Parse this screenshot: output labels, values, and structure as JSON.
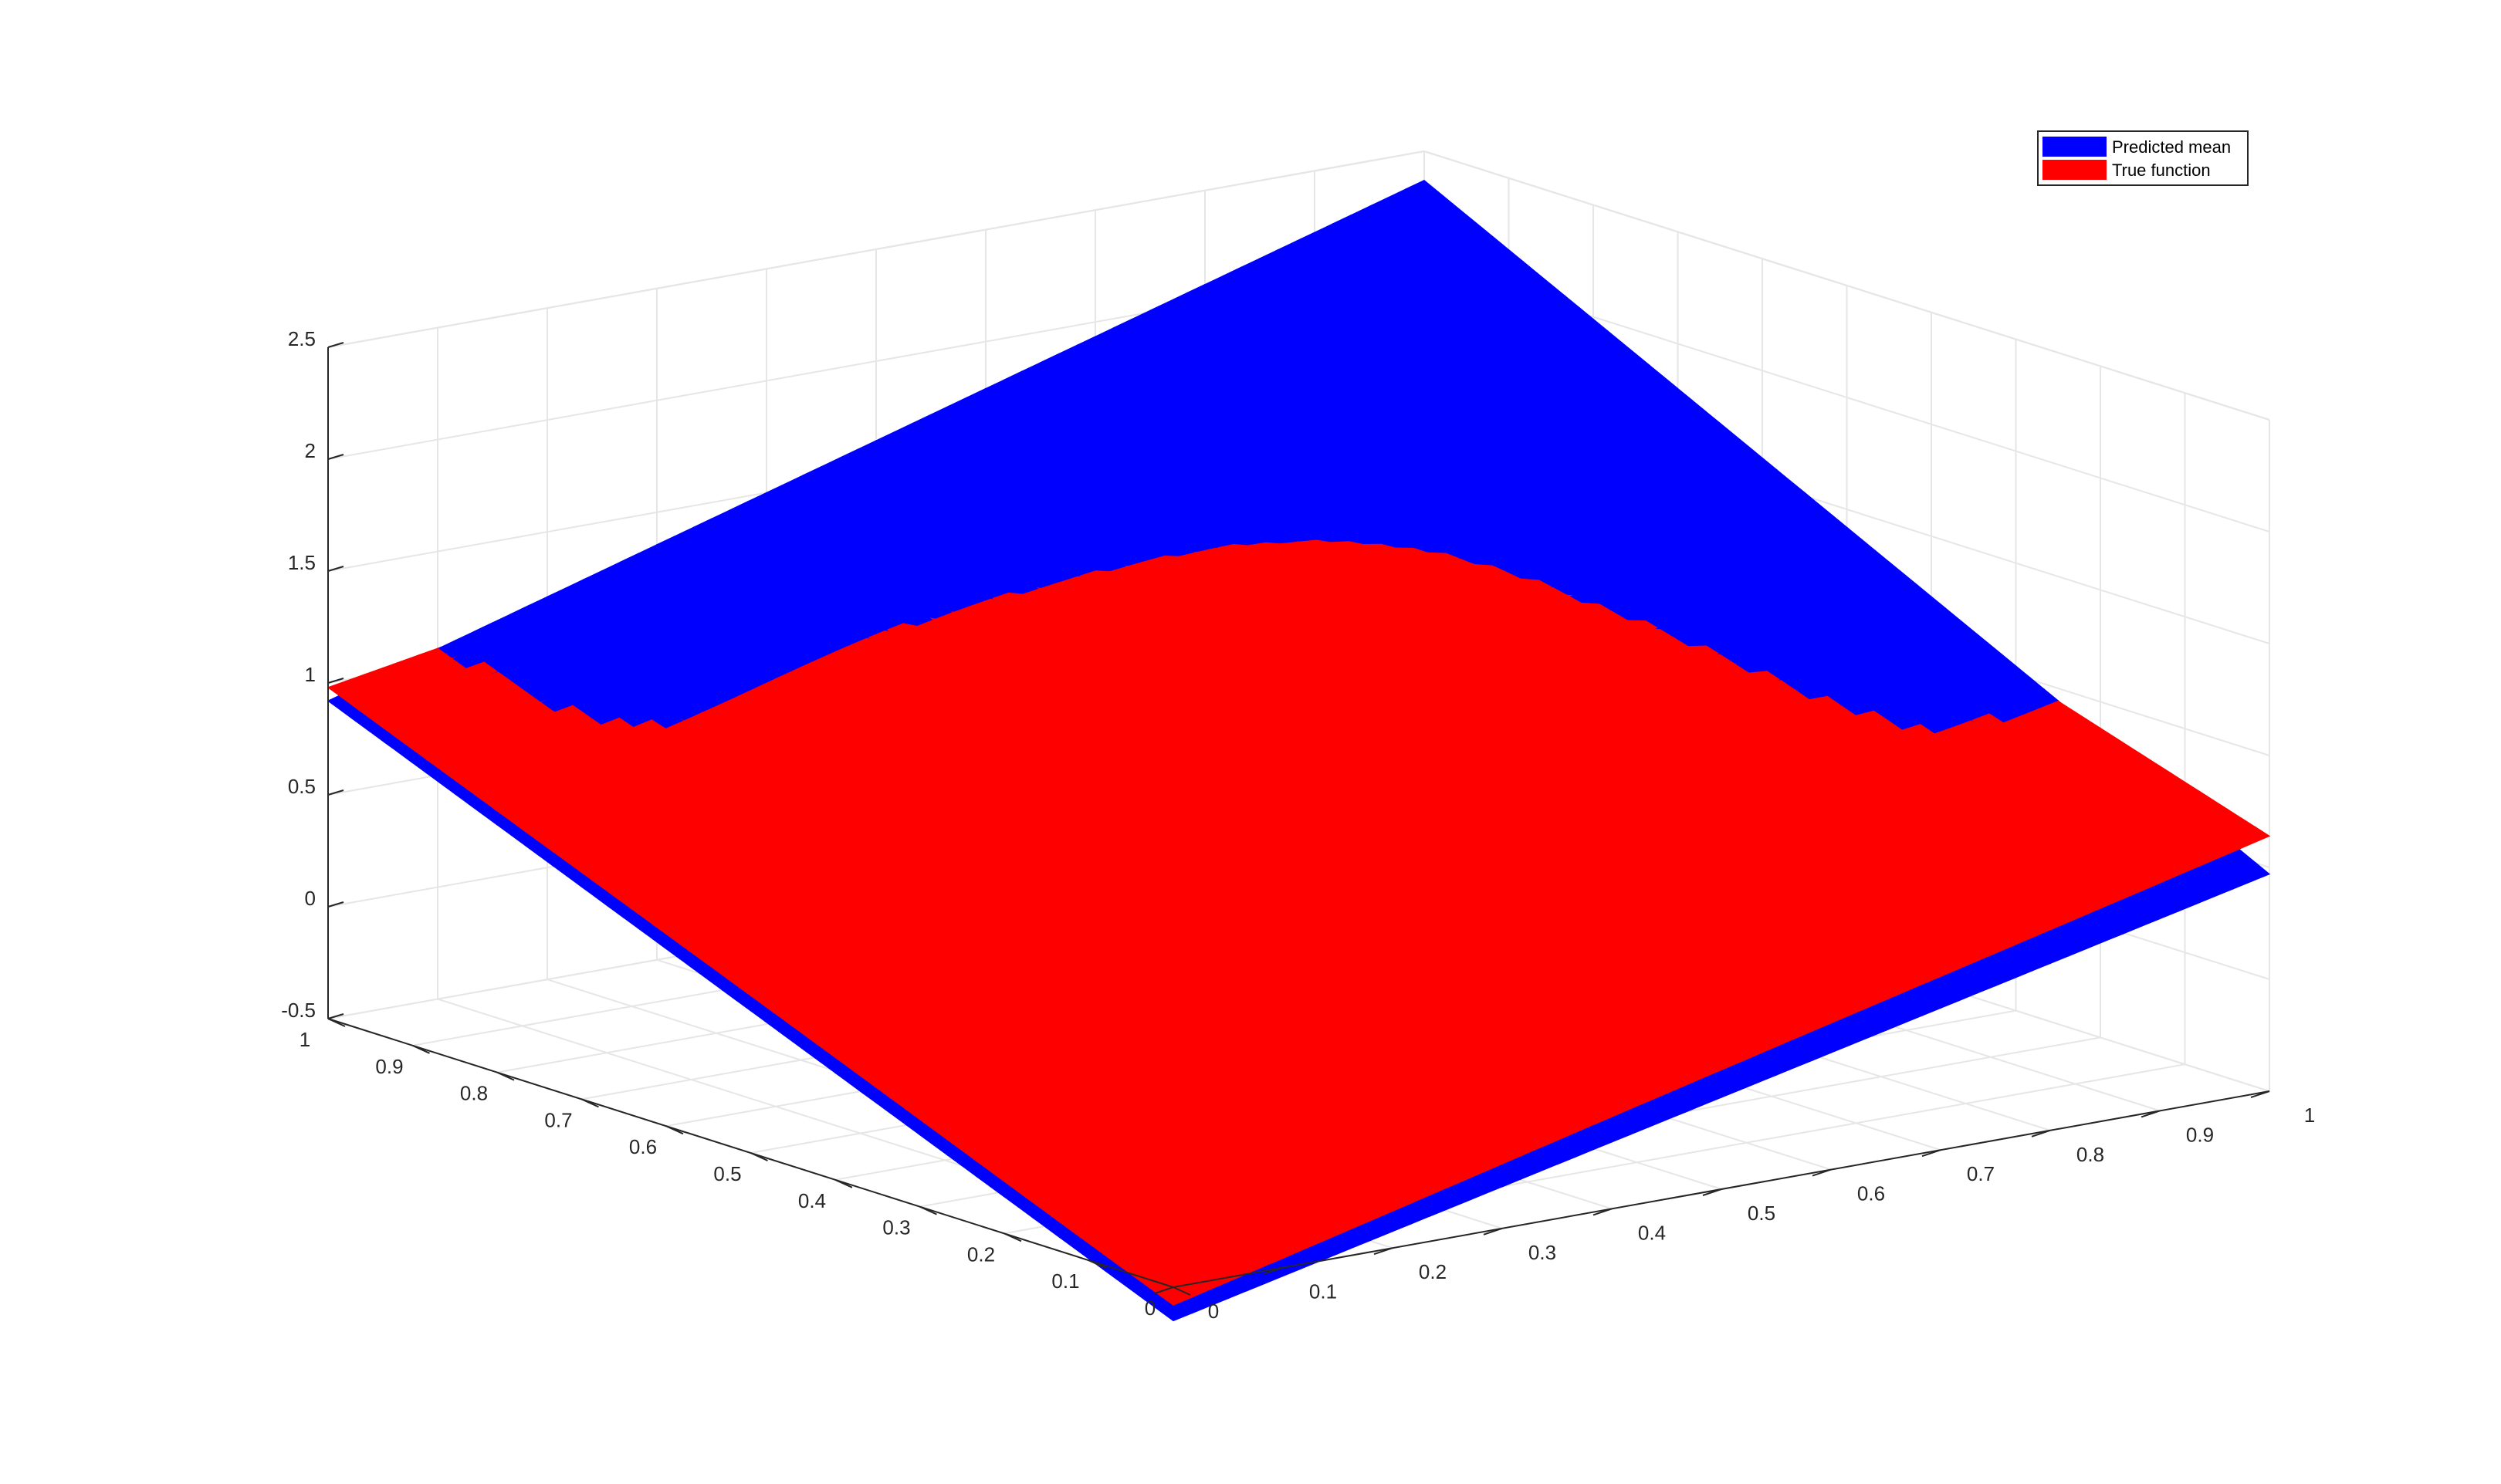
{
  "chart_data": {
    "type": "surface",
    "title": "",
    "xlabel": "",
    "ylabel": "",
    "zlabel": "",
    "xlim": [
      0,
      1
    ],
    "ylim": [
      0,
      1
    ],
    "zlim": [
      -0.5,
      2.5
    ],
    "grid": true,
    "box": true,
    "x_ticks": [
      "0",
      "0.1",
      "0.2",
      "0.3",
      "0.4",
      "0.5",
      "0.6",
      "0.7",
      "0.8",
      "0.9",
      "1"
    ],
    "y_ticks": [
      "0",
      "0.1",
      "0.2",
      "0.3",
      "0.4",
      "0.5",
      "0.6",
      "0.7",
      "0.8",
      "0.9",
      "1"
    ],
    "z_ticks": [
      "-0.5",
      "0",
      "0.5",
      "1",
      "1.5",
      "2",
      "2.5"
    ],
    "legend_position": "top-right",
    "series": [
      {
        "name": "Predicted mean",
        "color": "#0000ff",
        "corners": {
          "x0y0": -0.65,
          "x1y0": 0.47,
          "x0y1": 0.92,
          "x1y1": 2.37
        },
        "description_form": "bilinear"
      },
      {
        "name": "True function",
        "color": "#ff0000",
        "corners": {
          "x0y0": -0.58,
          "x1y0": 0.64,
          "x0y1": 0.98,
          "x1y1": 1.85
        },
        "plateau": 1.7
      }
    ]
  },
  "legend": {
    "items": [
      {
        "label": "Predicted mean",
        "color": "#0000ff"
      },
      {
        "label": "True function",
        "color": "#ff0000"
      }
    ]
  }
}
